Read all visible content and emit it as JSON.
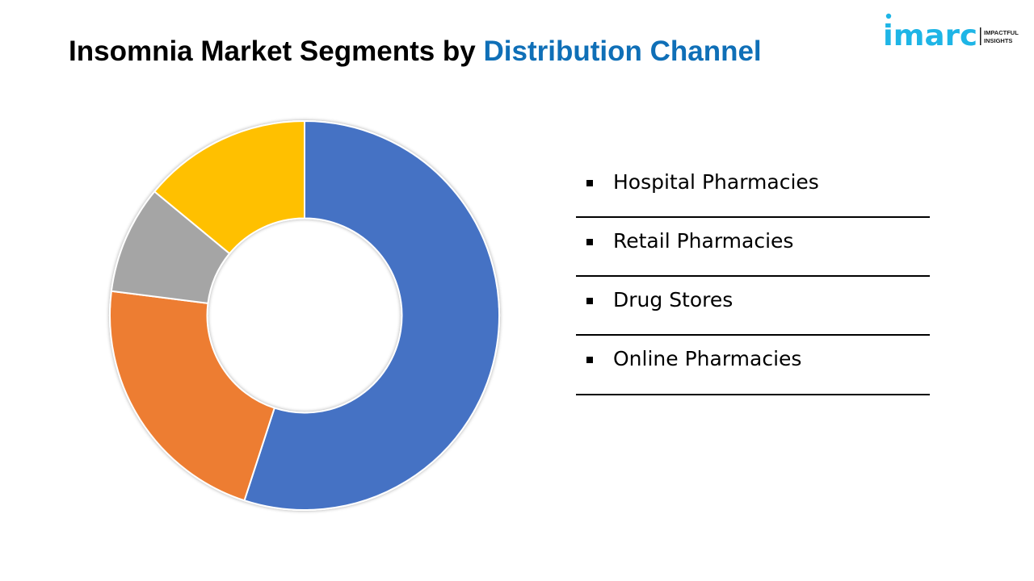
{
  "title": {
    "prefix": "Insomnia Market Segments by ",
    "highlight": "Distribution Channel"
  },
  "logo": {
    "brand": "imarc",
    "tagline_line1": "IMPACTFUL",
    "tagline_line2": "INSIGHTS",
    "brand_color": "#1eb5e6"
  },
  "colors": {
    "title_accent": "#0f6fb7"
  },
  "chart_data": {
    "type": "pie",
    "categories": [
      "Hospital Pharmacies",
      "Retail Pharmacies",
      "Drug Stores",
      "Online Pharmacies"
    ],
    "values": [
      55,
      22,
      9,
      14
    ],
    "colors": [
      "#4472c4",
      "#ed7d31",
      "#a5a5a5",
      "#ffc000"
    ],
    "hole": 0.5,
    "legend": "right"
  },
  "legend": {
    "items": [
      {
        "label": "Hospital Pharmacies"
      },
      {
        "label": "Retail Pharmacies"
      },
      {
        "label": "Drug Stores"
      },
      {
        "label": "Online Pharmacies"
      }
    ]
  }
}
